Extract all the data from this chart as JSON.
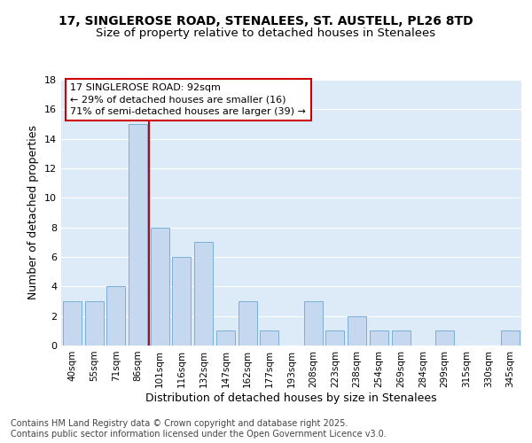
{
  "title_line1": "17, SINGLEROSE ROAD, STENALEES, ST. AUSTELL, PL26 8TD",
  "title_line2": "Size of property relative to detached houses in Stenalees",
  "xlabel": "Distribution of detached houses by size in Stenalees",
  "ylabel": "Number of detached properties",
  "categories": [
    "40sqm",
    "55sqm",
    "71sqm",
    "86sqm",
    "101sqm",
    "116sqm",
    "132sqm",
    "147sqm",
    "162sqm",
    "177sqm",
    "193sqm",
    "208sqm",
    "223sqm",
    "238sqm",
    "254sqm",
    "269sqm",
    "284sqm",
    "299sqm",
    "315sqm",
    "330sqm",
    "345sqm"
  ],
  "values": [
    3,
    3,
    4,
    15,
    8,
    6,
    7,
    1,
    3,
    1,
    0,
    3,
    1,
    2,
    1,
    1,
    0,
    1,
    0,
    0,
    1
  ],
  "bar_color": "#c5d8f0",
  "bar_edge_color": "#7aafd4",
  "highlight_index": 3,
  "highlight_line_color": "#cc0000",
  "ylim": [
    0,
    18
  ],
  "yticks": [
    0,
    2,
    4,
    6,
    8,
    10,
    12,
    14,
    16,
    18
  ],
  "bg_color": "#ddeaf8",
  "fig_bg_color": "#ffffff",
  "annotation_box_color": "#ffffff",
  "annotation_box_edge": "#cc0000",
  "annotation_text_line1": "17 SINGLEROSE ROAD: 92sqm",
  "annotation_text_line2": "← 29% of detached houses are smaller (16)",
  "annotation_text_line3": "71% of semi-detached houses are larger (39) →",
  "footer_line1": "Contains HM Land Registry data © Crown copyright and database right 2025.",
  "footer_line2": "Contains public sector information licensed under the Open Government Licence v3.0.",
  "grid_color": "#ffffff",
  "title_fontsize": 10,
  "subtitle_fontsize": 9.5,
  "axis_label_fontsize": 9,
  "tick_fontsize": 7.5,
  "footer_fontsize": 7,
  "ann_fontsize": 8
}
